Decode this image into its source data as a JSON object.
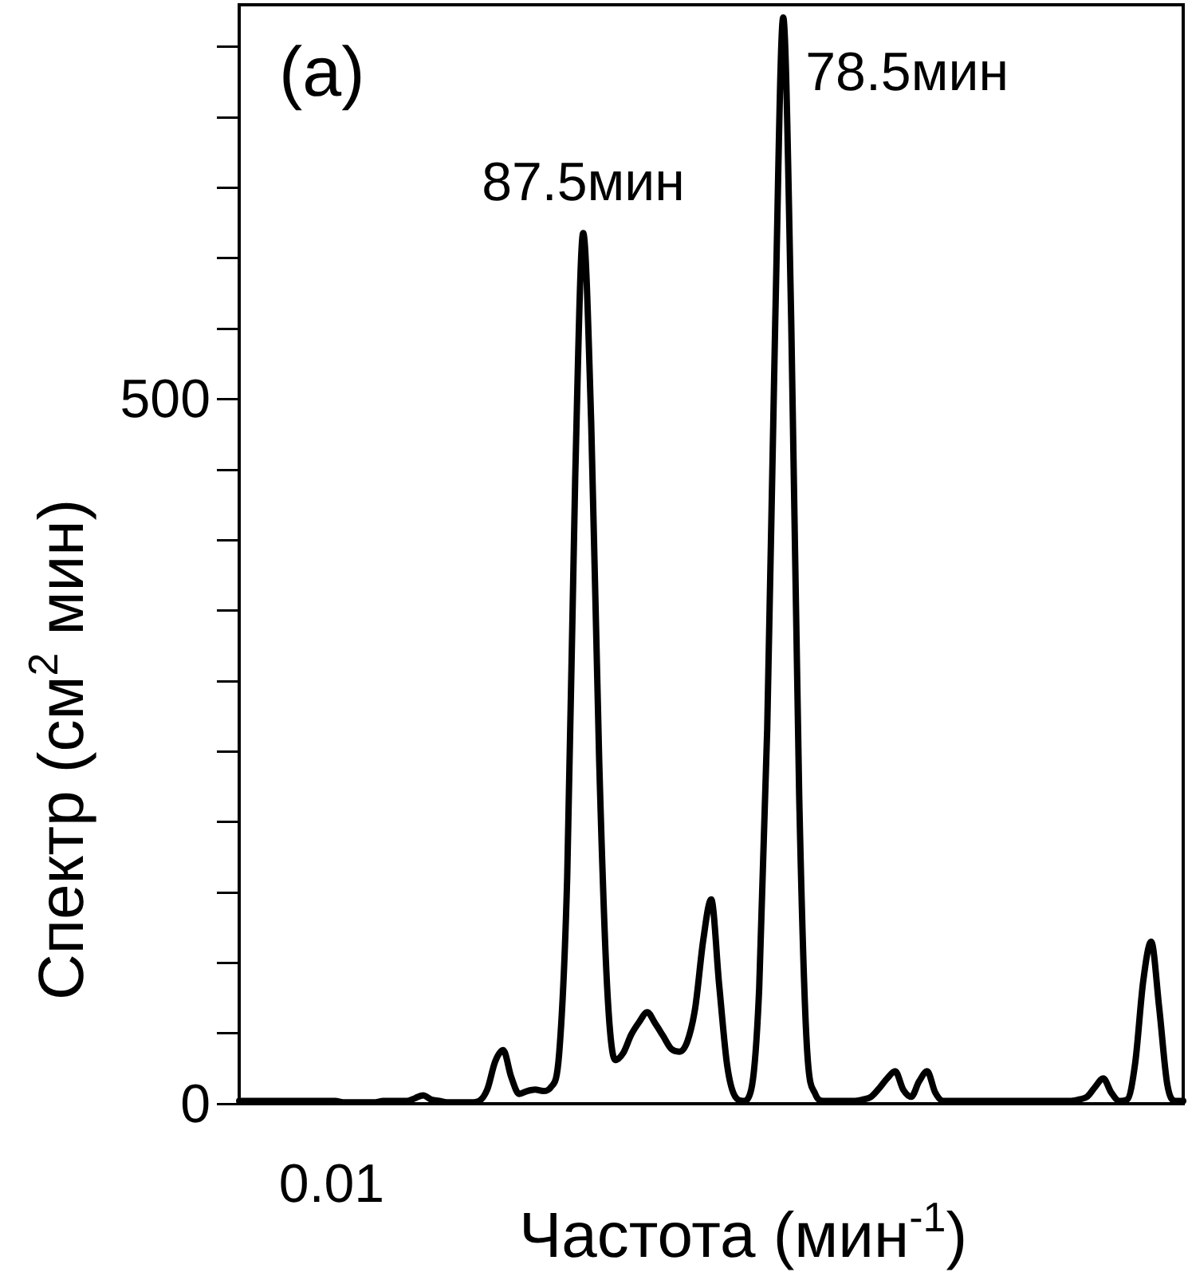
{
  "chart_data": {
    "type": "line",
    "xlabel": "Частота (мин$^{-1}$)",
    "ylabel": "Спектр (см$^{2}$ мин)",
    "grid": false,
    "legend": false,
    "marker": "none",
    "line_style": "solid",
    "categories": [
      null,
      null,
      null,
      null,
      null,
      null,
      null,
      null,
      null,
      null,
      null,
      null,
      null,
      null,
      null,
      null,
      null,
      null,
      null,
      null,
      null,
      null,
      null,
      null,
      null,
      null,
      null,
      null,
      null,
      null,
      null,
      null,
      null,
      null,
      null,
      null,
      null,
      null,
      null,
      null,
      null,
      null,
      null,
      null,
      null,
      null,
      null,
      null,
      null,
      null,
      null,
      null,
      null,
      null,
      null,
      null,
      null,
      null,
      null,
      null,
      null,
      null,
      null,
      null,
      null,
      null,
      null,
      null,
      null,
      null,
      null,
      null,
      null,
      null,
      null,
      null,
      null,
      null,
      null,
      null,
      null,
      null,
      null,
      null,
      null,
      null,
      null,
      null,
      null,
      null,
      null,
      null,
      null,
      null,
      null,
      null,
      null,
      null,
      null,
      null,
      null,
      null,
      null,
      null,
      null,
      null,
      null,
      null,
      null,
      null,
      null,
      null,
      null,
      null,
      null,
      null,
      null,
      null,
      null
    ],
    "ylim": [
      0,
      780
    ],
    "yticks": [
      0,
      {
        "value": 50,
        "label": null
      },
      {
        "value": 100,
        "label": null
      },
      {
        "value": 150,
        "label": null
      },
      {
        "value": 200,
        "label": null
      },
      {
        "value": 250,
        "label": null
      },
      {
        "value": 300,
        "label": null
      },
      {
        "value": 350,
        "label": null
      },
      {
        "value": 400,
        "label": null
      },
      {
        "value": 450,
        "label": null
      },
      500,
      {
        "value": 550,
        "label": null
      },
      {
        "value": 600,
        "label": null
      },
      {
        "value": 650,
        "label": null
      },
      {
        "value": 700,
        "label": null
      },
      {
        "value": 750,
        "label": null
      }
    ],
    "annotations": [
      "(a)",
      "0.01",
      "78.5мин",
      "87.5мин"
    ],
    "series": [
      {
        "color": "#000000",
        "values": [
          2,
          2,
          2,
          2,
          2,
          2,
          2,
          2,
          2,
          2,
          2,
          2,
          2,
          1,
          1,
          1,
          1,
          1,
          2,
          2,
          2,
          2,
          4,
          6,
          3,
          2,
          1,
          1,
          1,
          1,
          2,
          10,
          30,
          38,
          19,
          7,
          9,
          10,
          9,
          12,
          36,
          161,
          444,
          618,
          483,
          243,
          82,
          31,
          36,
          49,
          58,
          65,
          57,
          48,
          39,
          37,
          44,
          68,
          116,
          145,
          84,
          27,
          5,
          2,
          10,
          82,
          266,
          554,
          771,
          556,
          218,
          37,
          7,
          2,
          2,
          2,
          2,
          2,
          3,
          5,
          11,
          18,
          23,
          10,
          5,
          16,
          23,
          8,
          2,
          2,
          2,
          2,
          2,
          2,
          2,
          2,
          2,
          2,
          2,
          2,
          2,
          2,
          2,
          2,
          2,
          3,
          5,
          12,
          18,
          8,
          2,
          3,
          29,
          87,
          115,
          68,
          14,
          2,
          2
        ]
      }
    ]
  }
}
